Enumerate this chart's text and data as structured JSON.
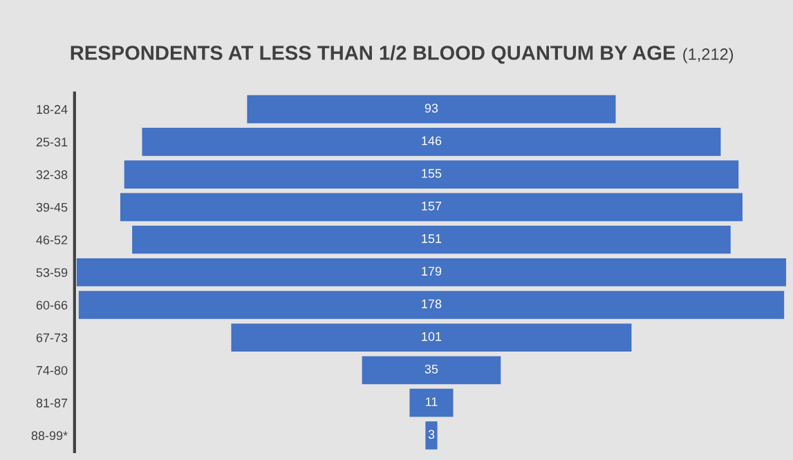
{
  "chart_data": {
    "type": "other",
    "title": "RESPONDENTS AT LESS THAN 1/2 BLOOD QUANTUM BY AGE",
    "subtitle": "(1,212)",
    "categories": [
      "18-24",
      "25-31",
      "32-38",
      "39-45",
      "46-52",
      "53-59",
      "60-66",
      "67-73",
      "74-80",
      "81-87",
      "88-99*"
    ],
    "values": [
      93,
      146,
      155,
      157,
      151,
      179,
      178,
      101,
      35,
      11,
      3
    ],
    "color": "#4472c4",
    "data_labels": true
  }
}
